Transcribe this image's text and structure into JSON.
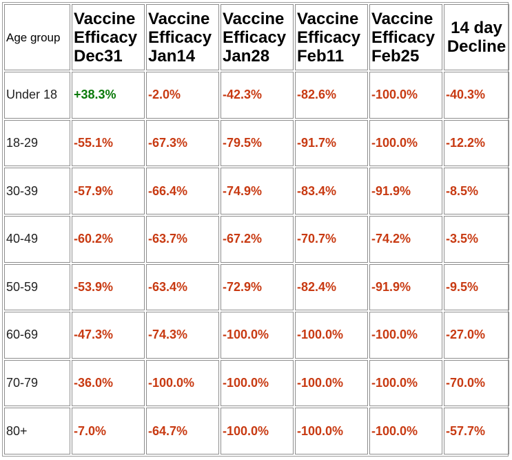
{
  "table": {
    "headers": [
      {
        "lines": [
          "Age group"
        ]
      },
      {
        "lines": [
          "Vaccine",
          "Efficacy",
          "Dec31"
        ]
      },
      {
        "lines": [
          "Vaccine",
          "Efficacy",
          "Jan14"
        ]
      },
      {
        "lines": [
          "Vaccine",
          "Efficacy",
          "Jan28"
        ]
      },
      {
        "lines": [
          "Vaccine",
          "Efficacy",
          "Feb11"
        ]
      },
      {
        "lines": [
          "Vaccine",
          "Efficacy",
          "Feb25"
        ]
      },
      {
        "lines": [
          "14 day",
          "Decline"
        ]
      }
    ],
    "rows": [
      {
        "age": "Under 18",
        "values": [
          "+38.3%",
          "-2.0%",
          "-42.3%",
          "-82.6%",
          "-100.0%",
          "-40.3%"
        ]
      },
      {
        "age": "18-29",
        "values": [
          "-55.1%",
          "-67.3%",
          "-79.5%",
          "-91.7%",
          "-100.0%",
          "-12.2%"
        ]
      },
      {
        "age": "30-39",
        "values": [
          "-57.9%",
          "-66.4%",
          "-74.9%",
          "-83.4%",
          "-91.9%",
          "-8.5%"
        ]
      },
      {
        "age": "40-49",
        "values": [
          "-60.2%",
          "-63.7%",
          "-67.2%",
          "-70.7%",
          "-74.2%",
          "-3.5%"
        ]
      },
      {
        "age": "50-59",
        "values": [
          "-53.9%",
          "-63.4%",
          "-72.9%",
          "-82.4%",
          "-91.9%",
          "-9.5%"
        ]
      },
      {
        "age": "60-69",
        "values": [
          "-47.3%",
          "-74.3%",
          "-100.0%",
          "-100.0%",
          "-100.0%",
          "-27.0%"
        ]
      },
      {
        "age": "70-79",
        "values": [
          "-36.0%",
          "-100.0%",
          "-100.0%",
          "-100.0%",
          "-100.0%",
          "-70.0%"
        ]
      },
      {
        "age": "80+",
        "values": [
          "-7.0%",
          "-64.7%",
          "-100.0%",
          "-100.0%",
          "-100.0%",
          "-57.7%"
        ]
      }
    ]
  },
  "colors": {
    "negative": "#c83a12",
    "positive": "#0a7a0a",
    "border": "#8c8c8c"
  }
}
